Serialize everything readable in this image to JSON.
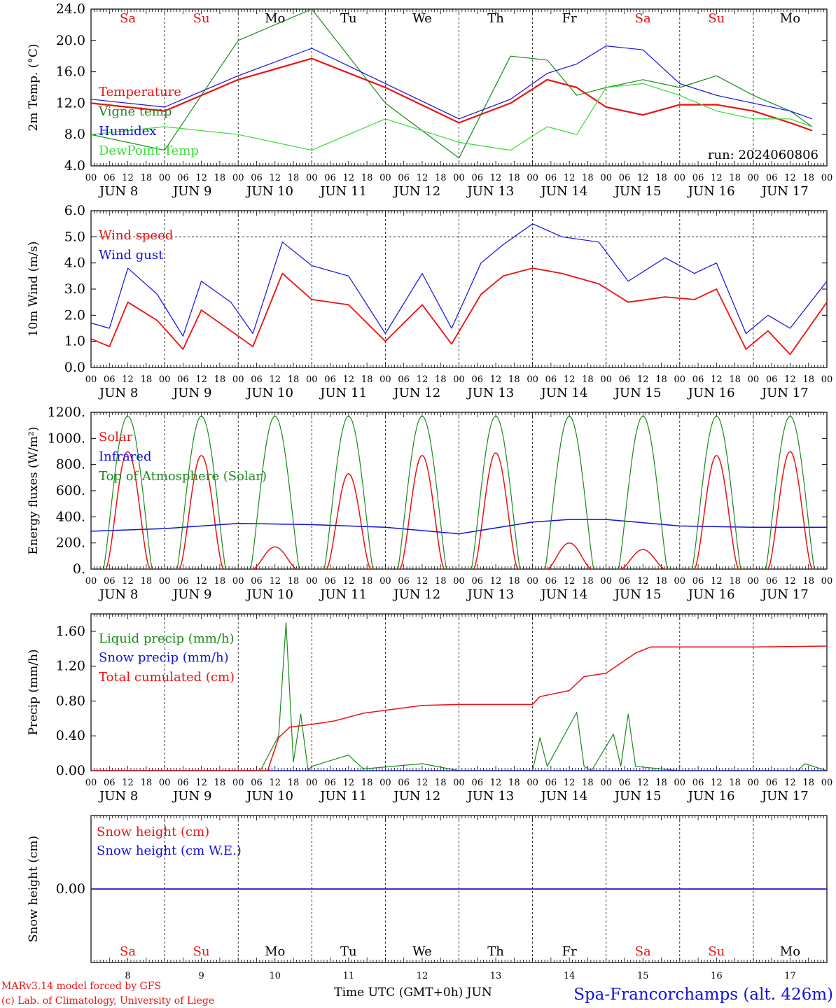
{
  "colors": {
    "red": "#ee1111",
    "green": "#1a8a1a",
    "blue": "#1111dd",
    "light_green": "#33dd33",
    "purple": "#7733aa",
    "axis": "#000000"
  },
  "time_axis": {
    "n_days": 10,
    "hour_ticks": [
      "00",
      "06",
      "12",
      "18"
    ],
    "end_tick": "00",
    "date_labels": [
      "JUN  8",
      "JUN  9",
      "JUN 10",
      "JUN 11",
      "JUN 12",
      "JUN 13",
      "JUN 14",
      "JUN 15",
      "JUN 16",
      "JUN 17"
    ],
    "weekdays": [
      {
        "label": "Sa",
        "color": "#ee1111"
      },
      {
        "label": "Su",
        "color": "#ee1111"
      },
      {
        "label": "Mo",
        "color": "#000000"
      },
      {
        "label": "Tu",
        "color": "#000000"
      },
      {
        "label": "We",
        "color": "#000000"
      },
      {
        "label": "Th",
        "color": "#000000"
      },
      {
        "label": "Fr",
        "color": "#000000"
      },
      {
        "label": "Sa",
        "color": "#ee1111"
      },
      {
        "label": "Su",
        "color": "#ee1111"
      },
      {
        "label": "Mo",
        "color": "#000000"
      }
    ],
    "day_numbers": [
      "8",
      "9",
      "10",
      "11",
      "12",
      "13",
      "14",
      "15",
      "16",
      "17"
    ],
    "xlabel": "Time UTC (GMT+0h) JUN"
  },
  "chart_data": [
    {
      "type": "line",
      "id": "temperature",
      "ylabel": "2m Temp. (°C)",
      "ylim": [
        4,
        24
      ],
      "yticks": [
        "4.0",
        "8.0",
        "12.0",
        "16.0",
        "20.0",
        "24.0"
      ],
      "run": "run: 2024060806",
      "series": [
        {
          "name": "Temperature",
          "color": "#ee1111",
          "width": 2.2,
          "x": [
            0,
            1,
            2,
            3,
            4,
            5,
            5.7,
            6.2,
            6.6,
            7,
            7.5,
            8,
            8.5,
            9,
            9.5,
            9.8
          ],
          "y": [
            12,
            11,
            15,
            17.7,
            14,
            9.5,
            12,
            15,
            14,
            11.5,
            10.5,
            11.8,
            11.8,
            11,
            9.5,
            8.5
          ]
        },
        {
          "name": "Vigne temp",
          "color": "#1a8a1a",
          "width": 1.2,
          "x": [
            0,
            1,
            2,
            3,
            4,
            5,
            5.7,
            6.2,
            6.6,
            7,
            7.5,
            8,
            8.5,
            9,
            9.5,
            9.8
          ],
          "y": [
            8,
            6,
            20,
            24,
            12,
            5,
            18,
            17.5,
            13,
            14,
            15,
            14,
            15.5,
            13,
            11,
            9
          ]
        },
        {
          "name": "Humidex",
          "color": "#1111dd",
          "width": 1.2,
          "x": [
            0,
            1,
            2,
            3,
            4,
            5,
            5.7,
            6.2,
            6.6,
            7,
            7.5,
            8,
            8.5,
            9,
            9.5,
            9.8
          ],
          "y": [
            12.5,
            11.5,
            15.5,
            19,
            14.5,
            10,
            12.5,
            15.8,
            17,
            19.3,
            18.8,
            14.5,
            13,
            12,
            11,
            10
          ]
        },
        {
          "name": "DewPoint Temp",
          "color": "#33dd33",
          "width": 1.2,
          "x": [
            0,
            1,
            2,
            3,
            4,
            5,
            5.7,
            6.2,
            6.6,
            7,
            7.5,
            8,
            8.5,
            9,
            9.5,
            9.8
          ],
          "y": [
            8,
            9,
            8,
            6,
            10,
            7,
            6,
            9,
            8,
            14,
            14.5,
            13,
            11,
            10,
            10,
            9
          ]
        }
      ]
    },
    {
      "type": "line",
      "id": "wind",
      "ylabel": "10m Wind (m/s)",
      "ylim": [
        0,
        6
      ],
      "yticks": [
        "0.0",
        "1.0",
        "2.0",
        "3.0",
        "4.0",
        "5.0",
        "6.0"
      ],
      "reference_y": 5,
      "series": [
        {
          "name": "Wind speed",
          "color": "#ee1111",
          "width": 1.8,
          "x": [
            0,
            0.25,
            0.5,
            0.9,
            1.25,
            1.5,
            1.9,
            2.2,
            2.6,
            3,
            3.5,
            4,
            4.5,
            4.9,
            5.3,
            5.6,
            6,
            6.4,
            6.9,
            7.3,
            7.8,
            8.2,
            8.5,
            8.9,
            9.2,
            9.5,
            10
          ],
          "y": [
            1.1,
            0.8,
            2.5,
            1.8,
            0.7,
            2.2,
            1.4,
            0.8,
            3.6,
            2.6,
            2.4,
            1,
            2.4,
            0.9,
            2.8,
            3.5,
            3.8,
            3.6,
            3.2,
            2.5,
            2.7,
            2.6,
            3,
            0.7,
            1.4,
            0.5,
            2.5
          ]
        },
        {
          "name": "Wind gust",
          "color": "#1111dd",
          "width": 1.2,
          "x": [
            0,
            0.25,
            0.5,
            0.9,
            1.25,
            1.5,
            1.9,
            2.2,
            2.6,
            3,
            3.5,
            4,
            4.5,
            4.9,
            5.3,
            5.6,
            6,
            6.4,
            6.9,
            7.3,
            7.8,
            8.2,
            8.5,
            8.9,
            9.2,
            9.5,
            10
          ],
          "y": [
            1.7,
            1.5,
            3.8,
            2.8,
            1.2,
            3.3,
            2.5,
            1.3,
            4.8,
            3.9,
            3.5,
            1.3,
            3.6,
            1.5,
            4,
            4.7,
            5.5,
            5,
            4.8,
            3.3,
            4.2,
            3.6,
            4,
            1.3,
            2,
            1.5,
            3.3
          ]
        }
      ]
    },
    {
      "type": "line",
      "id": "energy",
      "ylabel": "Energy fluxes (W/m²)",
      "ylim": [
        0,
        1200
      ],
      "yticks": [
        "0.",
        "200.",
        "400.",
        "600.",
        "800.",
        "1000.",
        "1200."
      ],
      "series": [
        {
          "name": "Solar",
          "color": "#ee1111",
          "width": 1.5,
          "peaks": [
            900,
            870,
            170,
            730,
            870,
            890,
            200,
            150,
            870,
            900
          ]
        },
        {
          "name": "Infrared",
          "color": "#1111dd",
          "width": 1.5,
          "x": [
            0,
            1,
            2,
            3,
            4,
            5,
            6,
            6.5,
            7,
            8,
            9,
            10
          ],
          "y": [
            290,
            310,
            350,
            340,
            320,
            270,
            360,
            380,
            380,
            330,
            320,
            320
          ]
        },
        {
          "name": "Top of Atmosphere (Solar)",
          "color": "#1a8a1a",
          "width": 1.2,
          "peak": 1170,
          "day_start": 0.17,
          "day_end": 0.83
        }
      ]
    },
    {
      "type": "line",
      "id": "precip",
      "ylabel": "Precip (mm/h)",
      "ylim": [
        0,
        1.8
      ],
      "yticks": [
        "0.00",
        "0.40",
        "0.80",
        "1.20",
        "1.60"
      ],
      "series": [
        {
          "name": "Liquid precip (mm/h)",
          "color": "#1a8a1a",
          "width": 1.2,
          "x": [
            0,
            2.3,
            2.55,
            2.65,
            2.75,
            2.85,
            2.95,
            3.0,
            3.5,
            3.7,
            4.5,
            5,
            6.0,
            6.1,
            6.2,
            6.6,
            6.7,
            6.8,
            7.1,
            7.2,
            7.3,
            7.4,
            8,
            9.6,
            9.7,
            10
          ],
          "y": [
            0,
            0,
            0.4,
            1.7,
            0.1,
            0.65,
            0,
            0.05,
            0.18,
            0.02,
            0.08,
            0,
            0,
            0.38,
            0.05,
            0.67,
            0.05,
            0,
            0.42,
            0.05,
            0.65,
            0.05,
            0,
            0,
            0.08,
            0
          ]
        },
        {
          "name": "Snow precip (mm/h)",
          "color": "#1111dd",
          "width": 1.2,
          "x": [
            0,
            10
          ],
          "y": [
            0,
            0
          ]
        },
        {
          "name": "Total cumulated (cm)",
          "color": "#ee1111",
          "width": 1.5,
          "x": [
            0,
            2.4,
            2.55,
            2.7,
            2.9,
            3.3,
            3.7,
            4.5,
            5,
            6,
            6.1,
            6.5,
            6.7,
            7,
            7.4,
            7.6,
            8,
            9,
            10
          ],
          "y": [
            0,
            0,
            0.38,
            0.5,
            0.52,
            0.57,
            0.66,
            0.75,
            0.76,
            0.76,
            0.85,
            0.92,
            1.08,
            1.12,
            1.35,
            1.42,
            1.42,
            1.42,
            1.43
          ]
        }
      ]
    },
    {
      "type": "line",
      "id": "snow",
      "ylabel": "Snow height (cm)",
      "ylim": [
        -1,
        1
      ],
      "yticks": [
        "0.00"
      ],
      "series": [
        {
          "name": "Snow height (cm)",
          "color": "#ee1111",
          "width": 1.5,
          "x": [
            0,
            10
          ],
          "y": [
            0,
            0
          ]
        },
        {
          "name": "Snow height (cm W.E.)",
          "color": "#1111dd",
          "width": 1.5,
          "x": [
            0,
            10
          ],
          "y": [
            0,
            0
          ]
        }
      ]
    }
  ],
  "footer": {
    "model": "MARv3.14 model forced by GFS",
    "credit": "(c) Lab. of Climatology, University of Liege",
    "station": "Spa-Francorchamps (alt. 426m)"
  }
}
